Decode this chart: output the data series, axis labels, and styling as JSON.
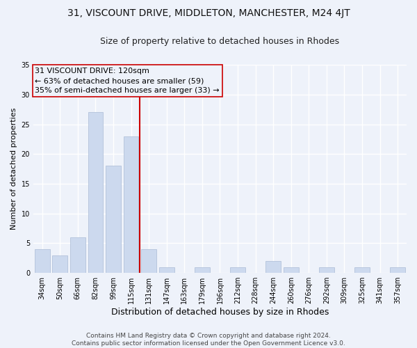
{
  "title": "31, VISCOUNT DRIVE, MIDDLETON, MANCHESTER, M24 4JT",
  "subtitle": "Size of property relative to detached houses in Rhodes",
  "xlabel": "Distribution of detached houses by size in Rhodes",
  "ylabel": "Number of detached properties",
  "categories": [
    "34sqm",
    "50sqm",
    "66sqm",
    "82sqm",
    "99sqm",
    "115sqm",
    "131sqm",
    "147sqm",
    "163sqm",
    "179sqm",
    "196sqm",
    "212sqm",
    "228sqm",
    "244sqm",
    "260sqm",
    "276sqm",
    "292sqm",
    "309sqm",
    "325sqm",
    "341sqm",
    "357sqm"
  ],
  "values": [
    4,
    3,
    6,
    27,
    18,
    23,
    4,
    1,
    0,
    1,
    0,
    1,
    0,
    2,
    1,
    0,
    1,
    0,
    1,
    0,
    1
  ],
  "bar_color": "#ccd9ee",
  "bar_edge_color": "#aabbd6",
  "bar_width": 0.85,
  "vline_x": 6.0,
  "vline_color": "#cc0000",
  "annotation_line1": "31 VISCOUNT DRIVE: 120sqm",
  "annotation_line2": "← 63% of detached houses are smaller (59)",
  "annotation_line3": "35% of semi-detached houses are larger (33) →",
  "annotation_box_color": "#cc0000",
  "background_color": "#eef2fa",
  "grid_color": "#ffffff",
  "ylim": [
    0,
    35
  ],
  "yticks": [
    0,
    5,
    10,
    15,
    20,
    25,
    30,
    35
  ],
  "footer_line1": "Contains HM Land Registry data © Crown copyright and database right 2024.",
  "footer_line2": "Contains public sector information licensed under the Open Government Licence v3.0.",
  "title_fontsize": 10,
  "subtitle_fontsize": 9,
  "xlabel_fontsize": 9,
  "ylabel_fontsize": 8,
  "tick_fontsize": 7,
  "annotation_fontsize": 8,
  "footer_fontsize": 6.5
}
